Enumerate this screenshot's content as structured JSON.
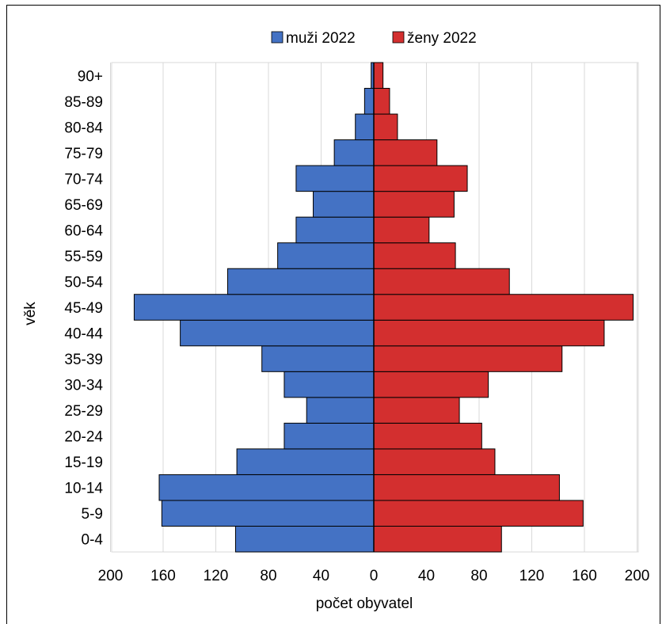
{
  "chart_data": {
    "type": "bar",
    "orientation": "horizontal-pyramid",
    "categories": [
      "0-4",
      "5-9",
      "10-14",
      "15-19",
      "20-24",
      "25-29",
      "30-34",
      "35-39",
      "40-44",
      "45-49",
      "50-54",
      "55-59",
      "60-64",
      "65-69",
      "70-74",
      "75-79",
      "80-84",
      "85-89",
      "90+"
    ],
    "series": [
      {
        "name": "muži 2022",
        "color": "#4472C4",
        "side": "left",
        "values": [
          105,
          161,
          163,
          104,
          68,
          51,
          68,
          85,
          147,
          182,
          111,
          73,
          59,
          46,
          59,
          30,
          14,
          7,
          2
        ]
      },
      {
        "name": "ženy 2022",
        "color": "#D32F2F",
        "side": "right",
        "values": [
          97,
          159,
          141,
          92,
          82,
          65,
          87,
          143,
          175,
          197,
          103,
          62,
          42,
          61,
          71,
          48,
          18,
          12,
          7
        ]
      }
    ],
    "xlabel": "počet obyvatel",
    "ylabel": "věk",
    "x_ticks": [
      "200",
      "160",
      "120",
      "80",
      "40",
      "0",
      "40",
      "80",
      "120",
      "160",
      "200"
    ],
    "xlim": [
      -200,
      200
    ],
    "grid": "vertical",
    "legend_position": "top"
  }
}
